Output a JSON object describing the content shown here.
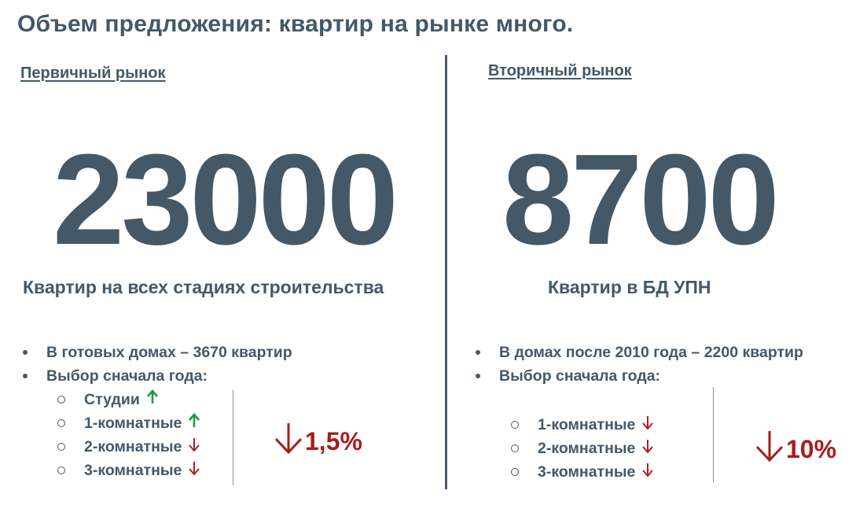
{
  "title": "Объем предложения: квартир на рынке много.",
  "primary": {
    "heading": "Первичный рынок",
    "number": "23000",
    "caption": "Квартир на всех стадиях строительства",
    "bullets": [
      "В готовых домах – 3670 квартир",
      "Выбор сначала года:"
    ],
    "subitems": [
      {
        "label": "Студии",
        "trend": "up"
      },
      {
        "label": "1-комнатные",
        "trend": "up"
      },
      {
        "label": "2-комнатные",
        "trend": "down"
      },
      {
        "label": "3-комнатные",
        "trend": "down"
      }
    ],
    "change": "1,5%"
  },
  "secondary": {
    "heading": "Вторичный рынок",
    "number": "8700",
    "caption": "Квартир в БД УПН",
    "bullets": [
      "В домах после 2010 года – 2200 квартир",
      "Выбор сначала года:"
    ],
    "subitems": [
      {
        "label": "1-комнатные",
        "trend": "down"
      },
      {
        "label": "2-комнатные",
        "trend": "down"
      },
      {
        "label": "3-комнатные",
        "trend": "down"
      }
    ],
    "change": "10%"
  },
  "colors": {
    "text": "#445867",
    "up": "#1a9a4b",
    "down": "#b01e1e",
    "pct": "#a81c1c"
  }
}
